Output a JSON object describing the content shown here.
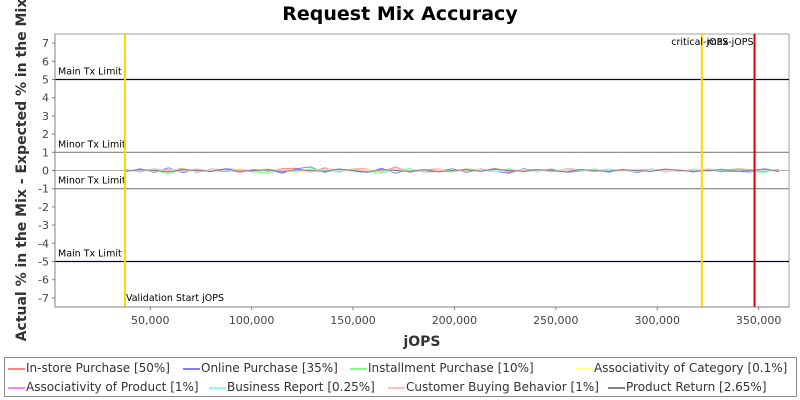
{
  "chart_data": {
    "type": "line",
    "title": "Request Mix Accuracy",
    "xlabel": "jOPS",
    "ylabel": "Actual % in the Mix - Expected % in the Mix",
    "xlim": [
      3000,
      365000
    ],
    "ylim": [
      -7.5,
      7.5
    ],
    "xticks": [
      50000,
      100000,
      150000,
      200000,
      250000,
      300000,
      350000
    ],
    "xtick_labels": [
      "50,000",
      "100,000",
      "150,000",
      "200,000",
      "250,000",
      "300,000",
      "350,000"
    ],
    "yticks": [
      -7,
      -6,
      -5,
      -4,
      -3,
      -2,
      -1,
      0,
      1,
      2,
      3,
      4,
      5,
      6,
      7
    ],
    "ytick_labels": [
      "-7",
      "-6",
      "-5",
      "-4",
      "-3",
      "-2",
      "-1",
      "0",
      "1",
      "2",
      "3",
      "4",
      "5",
      "6",
      "7"
    ],
    "grid": false,
    "legend_position": "bottom",
    "reference_lines": [
      {
        "type": "horizontal",
        "y": 5,
        "label": "Main Tx Limit",
        "color": "#00005a"
      },
      {
        "type": "horizontal",
        "y": -5,
        "label": "Main Tx Limit",
        "color": "#00005a"
      },
      {
        "type": "horizontal",
        "y": 1,
        "label": "Minor Tx Limit",
        "color": "#808080"
      },
      {
        "type": "horizontal",
        "y": -1,
        "label": "Minor Tx Limit",
        "color": "#808080"
      },
      {
        "type": "vertical",
        "x": 37500,
        "label": "Validation Start jOPS",
        "color": "#ffd700"
      },
      {
        "type": "vertical",
        "x": 322000,
        "label": "critical-jOPS",
        "color": "#ffd700"
      },
      {
        "type": "vertical",
        "x": 348000,
        "label": "max-jOPS",
        "color": "#e00000"
      }
    ],
    "x": [
      38000,
      45000,
      52000,
      59000,
      66000,
      73000,
      80000,
      87000,
      94000,
      101000,
      108000,
      115000,
      122000,
      129000,
      136000,
      143000,
      150000,
      157000,
      164000,
      171000,
      178000,
      185000,
      192000,
      199000,
      206000,
      213000,
      220000,
      227000,
      234000,
      241000,
      248000,
      255000,
      262000,
      269000,
      276000,
      283000,
      290000,
      297000,
      304000,
      311000,
      318000,
      325000,
      332000,
      339000,
      346000,
      353000,
      360000
    ],
    "series": [
      {
        "name": "In-store Purchase [50%]",
        "color": "#ff8080",
        "values": [
          0.05,
          -0.08,
          0.1,
          -0.05,
          0.12,
          -0.1,
          0.08,
          0.05,
          -0.1,
          0.06,
          -0.05,
          0.1,
          0.12,
          -0.08,
          0.15,
          -0.05,
          0.08,
          0.1,
          -0.08,
          0.2,
          -0.1,
          0.05,
          0.08,
          -0.06,
          0.1,
          -0.05,
          0.12,
          -0.1,
          0.06,
          0.05,
          -0.08,
          0.1,
          0.05,
          -0.06,
          0.08,
          -0.05,
          0.06,
          0.05,
          -0.08,
          0.06,
          -0.05,
          0.08,
          -0.05,
          0.1,
          0.05,
          -0.06,
          0.05
        ]
      },
      {
        "name": "Online Purchase [35%]",
        "color": "#8080ff",
        "values": [
          -0.05,
          0.1,
          -0.1,
          0.15,
          -0.12,
          0.08,
          -0.06,
          0.1,
          0.05,
          -0.08,
          0.06,
          -0.15,
          0.1,
          0.2,
          -0.1,
          0.08,
          -0.05,
          -0.1,
          0.12,
          -0.15,
          0.1,
          -0.08,
          -0.05,
          0.1,
          -0.1,
          0.08,
          -0.05,
          -0.15,
          0.1,
          -0.06,
          0.08,
          -0.1,
          -0.05,
          0.08,
          -0.1,
          0.06,
          -0.12,
          0.08,
          -0.05,
          0.06,
          -0.08,
          0.05,
          -0.06,
          -0.05,
          -0.08,
          0.1,
          -0.06
        ]
      },
      {
        "name": "Installment Purchase [10%]",
        "color": "#80ff80",
        "values": [
          0.02,
          -0.05,
          0.08,
          -0.2,
          0.1,
          -0.05,
          0.05,
          -0.08,
          0.1,
          -0.05,
          -0.15,
          0.05,
          -0.08,
          0.1,
          0.05,
          -0.1,
          0.08,
          -0.05,
          -0.15,
          0.05,
          0.1,
          -0.08,
          0.05,
          -0.1,
          0.08,
          0.05,
          -0.05,
          0.1,
          -0.08,
          0.05,
          -0.06,
          0.08,
          -0.05,
          0.1,
          -0.05,
          0.05,
          -0.08,
          0.06,
          0.05,
          -0.05,
          0.08,
          -0.05,
          0.05,
          0.08,
          -0.05,
          -0.1,
          0.08
        ]
      },
      {
        "name": "Associativity of Category [0.1%]",
        "color": "#ffff80",
        "values": [
          0.0,
          0.05,
          -0.05,
          0.08,
          0.0,
          -0.05,
          0.05,
          0.0,
          0.1,
          -0.05,
          0.05,
          0.0,
          -0.2,
          0.05,
          0.0,
          0.05,
          -0.05,
          0.08,
          0.0,
          -0.05,
          0.05,
          0.0,
          0.05,
          -0.05,
          0.0,
          0.05,
          -0.05,
          0.0,
          0.05,
          0.0,
          -0.05,
          0.05,
          0.0,
          0.05,
          0.0,
          -0.05,
          0.05,
          0.0,
          -0.05,
          0.05,
          0.0,
          0.05,
          0.0,
          -0.05,
          0.0,
          0.05,
          0.0
        ]
      },
      {
        "name": "Associativity of Product [1%]",
        "color": "#ff80ff",
        "values": [
          0.0,
          -0.03,
          0.03,
          0.05,
          -0.03,
          0.03,
          0.0,
          -0.05,
          0.03,
          0.0,
          0.05,
          -0.03,
          0.0,
          0.03,
          -0.05,
          0.0,
          0.03,
          -0.03,
          0.05,
          0.0,
          -0.03,
          0.03,
          0.0,
          -0.05,
          0.03,
          0.0,
          0.05,
          -0.03,
          0.0,
          0.03,
          -0.03,
          0.0,
          0.05,
          -0.03,
          0.0,
          0.03,
          0.0,
          -0.03,
          0.03,
          0.0,
          -0.03,
          0.03,
          0.0,
          0.05,
          0.0,
          -0.03,
          0.03
        ]
      },
      {
        "name": "Business Report [0.25%]",
        "color": "#80ffff",
        "values": [
          0.0,
          0.03,
          -0.03,
          0.0,
          0.05,
          -0.03,
          0.0,
          0.03,
          -0.05,
          0.0,
          0.03,
          0.0,
          -0.03,
          0.05,
          0.0,
          -0.03,
          0.03,
          0.0,
          -0.05,
          0.03,
          0.0,
          0.03,
          -0.03,
          0.0,
          0.05,
          -0.03,
          0.0,
          0.03,
          0.0,
          -0.05,
          0.03,
          0.0,
          -0.03,
          0.03,
          0.0,
          0.05,
          -0.03,
          0.0,
          0.03,
          -0.03,
          0.0,
          0.03,
          0.0,
          -0.03,
          0.05,
          0.0,
          -0.03
        ]
      },
      {
        "name": "Customer Buying Behavior [1%]",
        "color": "#ffc0c0",
        "values": [
          0.03,
          -0.05,
          0.05,
          0.0,
          -0.05,
          0.1,
          -0.03,
          0.05,
          0.0,
          -0.05,
          0.08,
          0.0,
          0.05,
          -0.08,
          0.1,
          0.05,
          -0.05,
          0.03,
          0.0,
          0.1,
          -0.05,
          0.05,
          0.0,
          -0.05,
          0.05,
          0.03,
          -0.08,
          0.05,
          0.0,
          0.05,
          -0.05,
          0.03,
          0.05,
          -0.03,
          0.08,
          0.0,
          -0.05,
          0.05,
          0.03,
          -0.03,
          0.05,
          0.0,
          0.08,
          -0.05,
          0.0,
          0.05,
          -0.03
        ]
      },
      {
        "name": "Product Return [2.65%]",
        "color": "#808080",
        "values": [
          -0.03,
          0.05,
          0.0,
          -0.08,
          0.05,
          0.0,
          -0.05,
          0.08,
          -0.05,
          0.0,
          0.05,
          -0.08,
          0.05,
          0.0,
          -0.05,
          0.08,
          0.0,
          -0.1,
          0.05,
          0.0,
          -0.05,
          0.05,
          -0.08,
          0.0,
          0.05,
          -0.05,
          0.08,
          0.0,
          -0.05,
          0.05,
          0.0,
          -0.08,
          0.05,
          0.0,
          -0.05,
          0.05,
          0.0,
          -0.05,
          0.08,
          0.0,
          -0.05,
          0.0,
          0.05,
          -0.05,
          0.0,
          0.08,
          -0.05
        ]
      }
    ]
  }
}
